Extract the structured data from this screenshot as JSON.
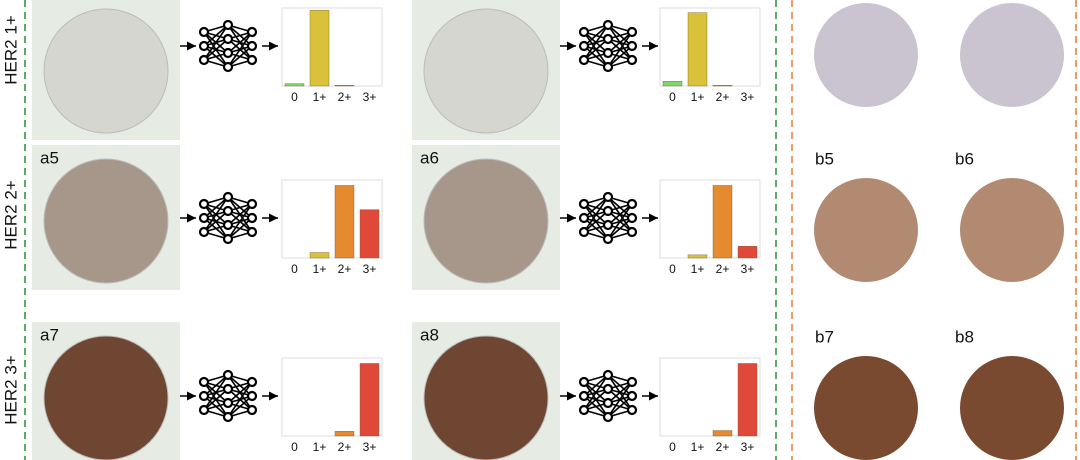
{
  "row_labels": [
    "HER2 1+",
    "HER2 2+",
    "HER2 3+"
  ],
  "left_panels": [
    "a5",
    "a6",
    "a7",
    "a8"
  ],
  "right_panels": [
    "b5",
    "b6",
    "b7",
    "b8"
  ],
  "chart_data": [
    {
      "type": "bar",
      "categories": [
        "0",
        "1+",
        "2+",
        "3+"
      ],
      "values": [
        0.03,
        0.97,
        0.01,
        0
      ],
      "colors": [
        "#7fd46a",
        "#d9c23a",
        "#e58a2e",
        "#e0483a"
      ]
    },
    {
      "type": "bar",
      "categories": [
        "0",
        "1+",
        "2+",
        "3+"
      ],
      "values": [
        0.06,
        0.94,
        0.01,
        0
      ],
      "colors": [
        "#7fd46a",
        "#d9c23a",
        "#e58a2e",
        "#e0483a"
      ]
    },
    {
      "type": "bar",
      "categories": [
        "0",
        "1+",
        "2+",
        "3+"
      ],
      "values": [
        0,
        0.07,
        0.93,
        0.62
      ],
      "colors": [
        "#7fd46a",
        "#d9c23a",
        "#e58a2e",
        "#e0483a"
      ]
    },
    {
      "type": "bar",
      "categories": [
        "0",
        "1+",
        "2+",
        "3+"
      ],
      "values": [
        0,
        0.04,
        0.93,
        0.15
      ],
      "colors": [
        "#7fd46a",
        "#d9c23a",
        "#e58a2e",
        "#e0483a"
      ]
    },
    {
      "type": "bar",
      "categories": [
        "0",
        "1+",
        "2+",
        "3+"
      ],
      "values": [
        0,
        0,
        0.06,
        0.93
      ],
      "colors": [
        "#7fd46a",
        "#d9c23a",
        "#e58a2e",
        "#e0483a"
      ]
    },
    {
      "type": "bar",
      "categories": [
        "0",
        "1+",
        "2+",
        "3+"
      ],
      "values": [
        0,
        0,
        0.07,
        0.93
      ],
      "colors": [
        "#7fd46a",
        "#d9c23a",
        "#e58a2e",
        "#e0483a"
      ]
    }
  ]
}
